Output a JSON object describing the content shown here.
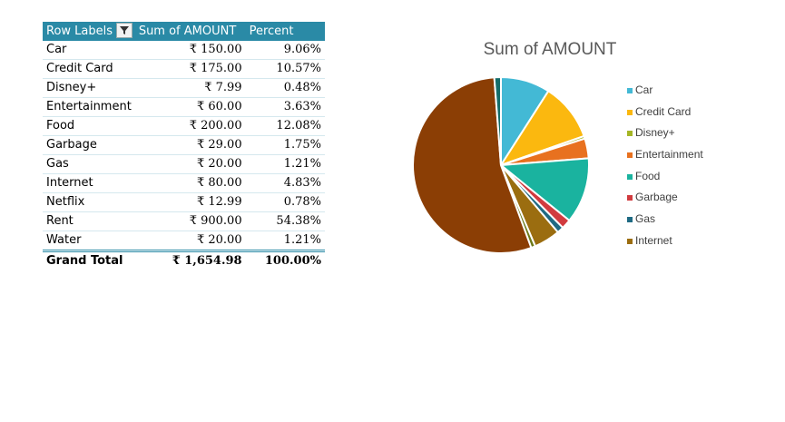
{
  "table": {
    "headers": [
      "Row Labels",
      "Sum of AMOUNT",
      "Percent"
    ],
    "rows": [
      {
        "label": "Car",
        "amount": "₹ 150.00",
        "percent": "9.06%"
      },
      {
        "label": "Credit Card",
        "amount": "₹ 175.00",
        "percent": "10.57%"
      },
      {
        "label": "Disney+",
        "amount": "₹ 7.99",
        "percent": "0.48%"
      },
      {
        "label": "Entertainment",
        "amount": "₹ 60.00",
        "percent": "3.63%"
      },
      {
        "label": "Food",
        "amount": "₹ 200.00",
        "percent": "12.08%"
      },
      {
        "label": "Garbage",
        "amount": "₹ 29.00",
        "percent": "1.75%"
      },
      {
        "label": "Gas",
        "amount": "₹ 20.00",
        "percent": "1.21%"
      },
      {
        "label": "Internet",
        "amount": "₹ 80.00",
        "percent": "4.83%"
      },
      {
        "label": "Netflix",
        "amount": "₹ 12.99",
        "percent": "0.78%"
      },
      {
        "label": "Rent",
        "amount": "₹ 900.00",
        "percent": "54.38%"
      },
      {
        "label": "Water",
        "amount": "₹ 20.00",
        "percent": "1.21%"
      }
    ],
    "total": {
      "label": "Grand Total",
      "amount": "₹ 1,654.98",
      "percent": "100.00%"
    },
    "header_color": "#2a8aa6",
    "filter_icon": "filter-icon"
  },
  "chart_data": {
    "type": "pie",
    "title": "Sum of AMOUNT",
    "categories": [
      "Car",
      "Credit Card",
      "Disney+",
      "Entertainment",
      "Food",
      "Garbage",
      "Gas",
      "Internet",
      "Netflix",
      "Rent",
      "Water"
    ],
    "values": [
      150.0,
      175.0,
      7.99,
      60.0,
      200.0,
      29.0,
      20.0,
      80.0,
      12.99,
      900.0,
      20.0
    ],
    "colors": [
      "#43b9d5",
      "#fbb80f",
      "#a5b626",
      "#e8711f",
      "#1ab39f",
      "#d13b3f",
      "#1f6a83",
      "#9b6d10",
      "#6d7a1a",
      "#8b3e05",
      "#146d6a"
    ],
    "legend_categories": [
      "Car",
      "Credit Card",
      "Disney+",
      "Entertainment",
      "Food",
      "Garbage",
      "Gas",
      "Internet"
    ],
    "legend_position": "right"
  }
}
